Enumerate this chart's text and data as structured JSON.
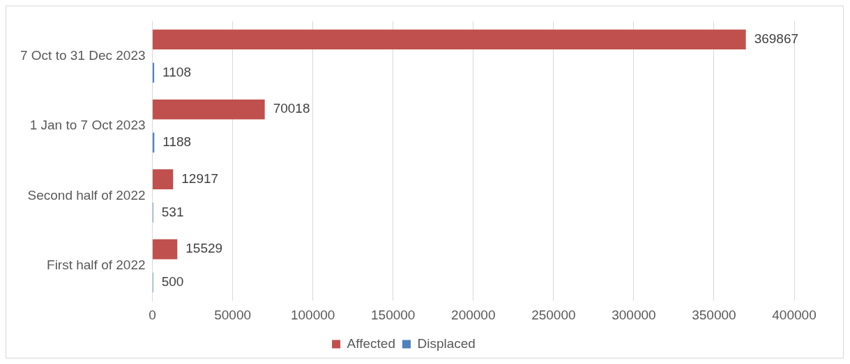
{
  "chart_data": {
    "type": "bar",
    "orientation": "horizontal",
    "categories": [
      "7 Oct to 31 Dec 2023",
      "1 Jan to 7 Oct 2023",
      "Second half of 2022",
      "First half of 2022"
    ],
    "series": [
      {
        "name": "Affected",
        "color": "#c0504d",
        "values": [
          369867,
          70018,
          12917,
          15529
        ]
      },
      {
        "name": "Displaced",
        "color": "#4f81bd",
        "values": [
          1108,
          1188,
          531,
          500
        ]
      }
    ],
    "xlim": [
      0,
      400000
    ],
    "xticks": [
      0,
      50000,
      100000,
      150000,
      200000,
      250000,
      300000,
      350000,
      400000
    ],
    "grid": "x",
    "legend": "bottom",
    "data_labels": true
  }
}
